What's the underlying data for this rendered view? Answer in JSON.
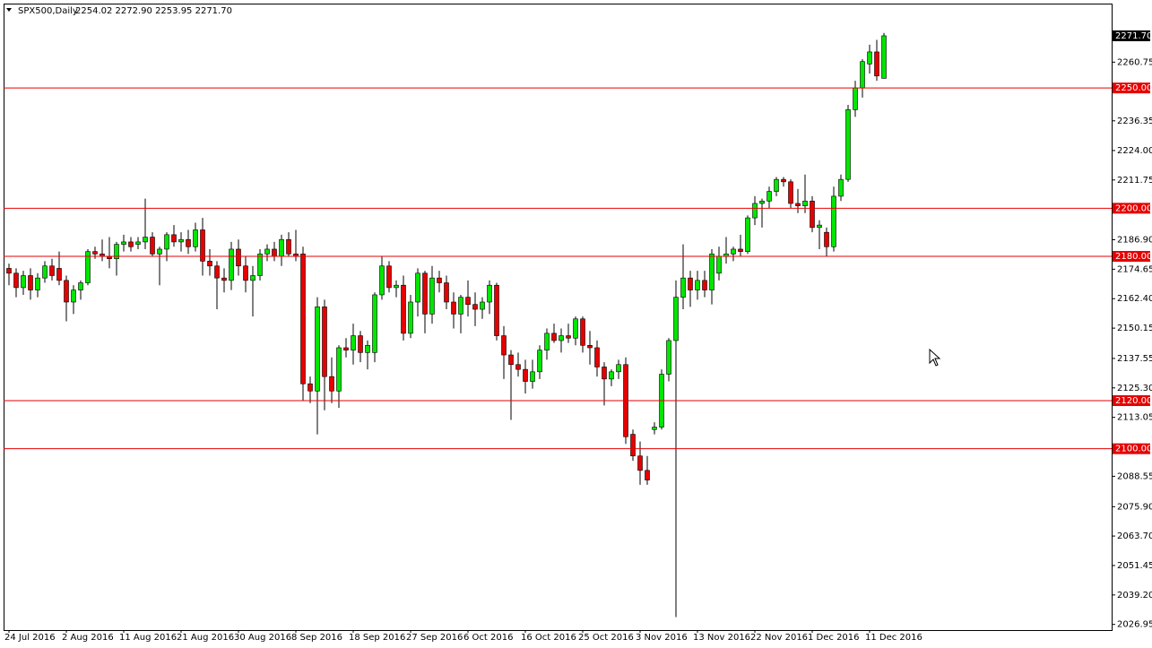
{
  "chart_data": {
    "type": "candlestick",
    "title": "SPX500,Daily",
    "ohlc_text": "2254.02 2272.90 2253.95 2271.70",
    "categories": [
      "24 Jul 2016",
      null,
      null,
      null,
      null,
      null,
      null,
      null,
      "2 Aug 2016",
      null,
      null,
      null,
      null,
      null,
      null,
      null,
      "11 Aug 2016",
      null,
      null,
      null,
      null,
      null,
      null,
      null,
      "21 Aug 2016",
      null,
      null,
      null,
      null,
      null,
      null,
      null,
      "30 Aug 2016",
      null,
      null,
      null,
      null,
      null,
      null,
      null,
      "8 Sep 2016",
      null,
      null,
      null,
      null,
      null,
      null,
      null,
      "18 Sep 2016",
      null,
      null,
      null,
      null,
      null,
      null,
      null,
      "27 Sep 2016",
      null,
      null,
      null,
      null,
      null,
      null,
      null,
      "6 Oct 2016",
      null,
      null,
      null,
      null,
      null,
      null,
      null,
      "16 Oct 2016",
      null,
      null,
      null,
      null,
      null,
      null,
      null,
      "25 Oct 2016",
      null,
      null,
      null,
      null,
      null,
      null,
      null,
      "3 Nov 2016",
      null,
      null,
      null,
      null,
      null,
      null,
      null,
      "13 Nov 2016",
      null,
      null,
      null,
      null,
      null,
      null,
      null,
      "22 Nov 2016",
      null,
      null,
      null,
      null,
      null,
      null,
      null,
      "1 Dec 2016",
      null,
      null,
      null,
      null,
      null,
      null,
      null,
      "11 Dec 2016",
      null,
      null
    ],
    "open": [
      2175,
      2173,
      2167,
      2172,
      2166,
      2171,
      2176,
      2175,
      2170,
      2161,
      2166,
      2169,
      2182,
      2181,
      2180,
      2179,
      2185,
      2186,
      2185,
      2186,
      2188,
      2181,
      2183,
      2189,
      2186,
      2187,
      2184,
      2191,
      2178,
      2176,
      2171,
      2170,
      2183,
      2176,
      2170,
      2172,
      2181,
      2183,
      2180,
      2187,
      2181,
      2181,
      2127,
      2124,
      2159,
      2130,
      2124,
      2142,
      2141,
      2147,
      2140,
      2140,
      2164,
      2176,
      2167,
      2168,
      2148,
      2161,
      2173,
      2156,
      2171,
      2169,
      2161,
      2156,
      2163,
      2160,
      2158,
      2161,
      2168,
      2147,
      2139,
      2135,
      2133,
      2128,
      2132,
      2141,
      2148,
      2145,
      2147,
      2146,
      2154,
      2143,
      2142,
      2134,
      2129,
      2132,
      2135,
      2106,
      2097,
      2091,
      2108,
      2109,
      2131,
      2145,
      2163,
      2171,
      2166,
      2170,
      2166,
      2173,
      2180,
      2181,
      2183,
      2182,
      2196,
      2202,
      2203,
      2207,
      2212,
      2211,
      2202,
      2201,
      2203,
      2192,
      2190,
      2184,
      2205,
      2212,
      2241,
      2250,
      2260,
      2265,
      2254.02
    ],
    "high": [
      2177,
      2175,
      2174,
      2175,
      2173,
      2178,
      2179,
      2182,
      2172,
      2168,
      2170,
      2183,
      2184,
      2187,
      2188,
      2186,
      2189,
      2188,
      2188,
      2204,
      2190,
      2184,
      2190,
      2193,
      2190,
      2191,
      2194,
      2196,
      2183,
      2178,
      2175,
      2186,
      2187,
      2180,
      2176,
      2183,
      2185,
      2186,
      2189,
      2190,
      2191,
      2184,
      2130,
      2163,
      2162,
      2138,
      2143,
      2146,
      2152,
      2149,
      2145,
      2165,
      2180,
      2178,
      2170,
      2172,
      2164,
      2175,
      2174,
      2176,
      2174,
      2172,
      2165,
      2164,
      2170,
      2165,
      2163,
      2170,
      2169,
      2151,
      2141,
      2140,
      2137,
      2137,
      2143,
      2150,
      2152,
      2150,
      2152,
      2155,
      2155,
      2149,
      2145,
      2136,
      2133,
      2137,
      2138,
      2108,
      2103,
      2097,
      2111,
      2133,
      2146,
      2170,
      2185,
      2174,
      2174,
      2174,
      2183,
      2184,
      2188,
      2184,
      2189,
      2197,
      2205,
      2204,
      2209,
      2213,
      2213,
      2212,
      2208,
      2214,
      2205,
      2195,
      2192,
      2209,
      2214,
      2243,
      2253,
      2262,
      2268,
      2270,
      2272.9
    ],
    "low": [
      2168,
      2163,
      2164,
      2162,
      2163,
      2169,
      2170,
      2168,
      2153,
      2156,
      2162,
      2168,
      2179,
      2178,
      2175,
      2172,
      2182,
      2182,
      2183,
      2183,
      2180,
      2168,
      2178,
      2184,
      2182,
      2181,
      2182,
      2172,
      2172,
      2158,
      2165,
      2166,
      2172,
      2165,
      2155,
      2170,
      2178,
      2178,
      2176,
      2180,
      2178,
      2120,
      2119,
      2106,
      2116,
      2119,
      2117,
      2138,
      2135,
      2136,
      2133,
      2136,
      2162,
      2165,
      2163,
      2145,
      2146,
      2155,
      2148,
      2152,
      2165,
      2158,
      2150,
      2148,
      2155,
      2151,
      2154,
      2156,
      2145,
      2129,
      2112,
      2130,
      2123,
      2125,
      2129,
      2137,
      2144,
      2140,
      2144,
      2143,
      2140,
      2135,
      2130,
      2118,
      2126,
      2129,
      2102,
      2095,
      2085,
      2085,
      2106,
      2108,
      2128,
      2030,
      2158,
      2159,
      2162,
      2163,
      2160,
      2170,
      2177,
      2178,
      2180,
      2181,
      2193,
      2192,
      2200,
      2205,
      2209,
      2200,
      2198,
      2198,
      2190,
      2183,
      2180,
      2182,
      2203,
      2211,
      2238,
      2246,
      2256,
      2253,
      2253.95
    ],
    "close": [
      2173,
      2167,
      2172,
      2166,
      2171,
      2176,
      2172,
      2170,
      2161,
      2166,
      2169,
      2182,
      2181,
      2180,
      2179,
      2185,
      2186,
      2184,
      2186,
      2188,
      2181,
      2183,
      2189,
      2186,
      2187,
      2184,
      2191,
      2178,
      2176,
      2171,
      2170,
      2183,
      2176,
      2170,
      2172,
      2181,
      2183,
      2180,
      2187,
      2181,
      2180,
      2127,
      2124,
      2159,
      2130,
      2124,
      2142,
      2141,
      2147,
      2140,
      2143,
      2164,
      2176,
      2167,
      2168,
      2148,
      2161,
      2173,
      2156,
      2171,
      2169,
      2161,
      2156,
      2163,
      2160,
      2158,
      2161,
      2168,
      2147,
      2139,
      2135,
      2133,
      2128,
      2132,
      2141,
      2148,
      2145,
      2147,
      2146,
      2154,
      2143,
      2142,
      2134,
      2129,
      2132,
      2135,
      2105,
      2097,
      2091,
      2087,
      2109,
      2131,
      2145,
      2163,
      2171,
      2166,
      2170,
      2166,
      2181,
      2180,
      2181,
      2183,
      2182,
      2196,
      2202,
      2203,
      2207,
      2212,
      2211,
      2202,
      2201,
      2203,
      2192,
      2193,
      2184,
      2205,
      2212,
      2241,
      2250,
      2261,
      2265,
      2255,
      2271.7
    ],
    "up_color": "#00e600",
    "down_color": "#e60000",
    "ylim": [
      2024.6,
      2285.1
    ],
    "yticks": [
      2260.75,
      2236.35,
      {
        "value": 2224.0,
        "label": "2224.00"
      },
      2211.75,
      {
        "value": 2186.9,
        "label": "2186.90"
      },
      2174.65,
      {
        "value": 2162.4,
        "label": "2162.40"
      },
      2150.15,
      2137.55,
      {
        "value": 2125.3,
        "label": "2125.30"
      },
      2113.05,
      2088.55,
      {
        "value": 2075.9,
        "label": "2075.90"
      },
      {
        "value": 2063.7,
        "label": "2063.70"
      },
      2051.45,
      {
        "value": 2039.2,
        "label": "2039.20"
      },
      2026.95
    ],
    "levels": [
      {
        "value": 2250,
        "label": "2250.00"
      },
      {
        "value": 2200,
        "label": "2200.00"
      },
      {
        "value": 2180,
        "label": "2180.00"
      },
      {
        "value": 2120,
        "label": "2120.00"
      },
      {
        "value": 2100,
        "label": "2100.00"
      }
    ],
    "level_color": "#e60000",
    "last_price": {
      "value": 2271.7,
      "label": "2271.70"
    }
  }
}
